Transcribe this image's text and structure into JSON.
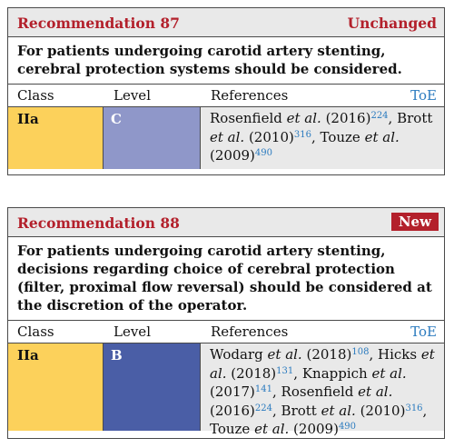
{
  "recommendations": [
    {
      "title": "Recommendation 87",
      "status": "Unchanged",
      "status_style": "plain",
      "statement": "For patients undergoing carotid artery stenting, cerebral protection systems should be considered.",
      "columns": {
        "class": "Class",
        "level": "Level",
        "references": "References",
        "toe": "ToE"
      },
      "class_value": "IIa",
      "level_value": "C",
      "level_color": "#8f97c9",
      "class_color": "#fcd15b",
      "references": [
        {
          "author": "Rosenfield",
          "etal": "et al.",
          "year": "(2016)",
          "ref": "224",
          "sep": ","
        },
        {
          "author": "Brott",
          "etal": "et al.",
          "year": "(2010)",
          "ref": "316",
          "sep": ","
        },
        {
          "author": "Touze",
          "etal": "et al.",
          "year": "(2009)",
          "ref": "490",
          "sep": ""
        }
      ]
    },
    {
      "title": "Recommendation 88",
      "status": "New",
      "status_style": "badge",
      "statement": "For patients undergoing carotid artery stenting, decisions regarding choice of cerebral protection (filter, proximal flow reversal) should be considered at the discretion of the operator.",
      "columns": {
        "class": "Class",
        "level": "Level",
        "references": "References",
        "toe": "ToE"
      },
      "class_value": "IIa",
      "level_value": "B",
      "level_color": "#4a5ea6",
      "class_color": "#fcd15b",
      "references": [
        {
          "author": "Wodarg",
          "etal": "et al.",
          "year": "(2018)",
          "ref": "108",
          "sep": ","
        },
        {
          "author": "Hicks",
          "etal": "et al.",
          "year": "(2018)",
          "ref": "131",
          "sep": ","
        },
        {
          "author": "Knappich",
          "etal": "et al.",
          "year": "(2017)",
          "ref": "141",
          "sep": ","
        },
        {
          "author": "Rosenfield",
          "etal": "et al.",
          "year": "(2016)",
          "ref": "224",
          "sep": ","
        },
        {
          "author": "Brott",
          "etal": "et al.",
          "year": "(2010)",
          "ref": "316",
          "sep": ","
        },
        {
          "author": "Touze",
          "etal": "et al.",
          "year": "(2009)",
          "ref": "490",
          "sep": ""
        }
      ]
    }
  ]
}
